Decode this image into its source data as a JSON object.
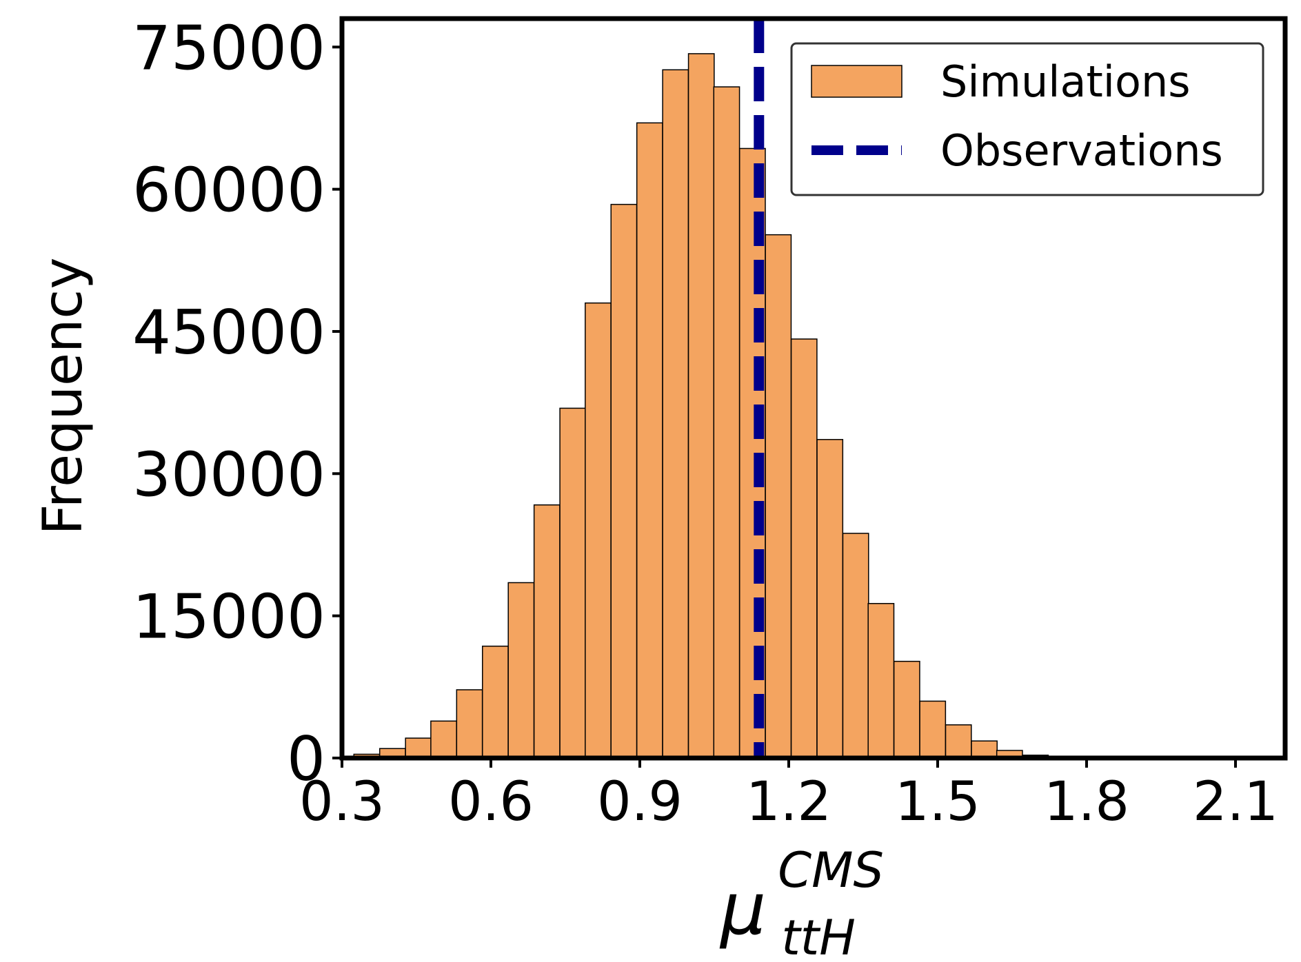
{
  "chart_data": {
    "type": "bar",
    "subtype": "histogram",
    "title": "",
    "xlabel": "μ",
    "xlabel_superscript": "CMS",
    "xlabel_subscript": "ttH",
    "ylabel": "Frequency",
    "xlim": [
      0.3,
      2.2
    ],
    "ylim": [
      0,
      78000
    ],
    "xticks": [
      "0.3",
      "0.6",
      "0.9",
      "1.2",
      "1.5",
      "1.8",
      "2.1"
    ],
    "xtick_values": [
      0.3,
      0.6,
      0.9,
      1.2,
      1.5,
      1.8,
      2.1
    ],
    "yticks": [
      "0",
      "15000",
      "30000",
      "45000",
      "60000",
      "75000"
    ],
    "ytick_values": [
      0,
      15000,
      30000,
      45000,
      60000,
      75000
    ],
    "bin_width": 0.0518,
    "bins": [
      {
        "x0": 0.324,
        "value": 400
      },
      {
        "x0": 0.376,
        "value": 1000
      },
      {
        "x0": 0.428,
        "value": 2100
      },
      {
        "x0": 0.479,
        "value": 3900
      },
      {
        "x0": 0.531,
        "value": 7200
      },
      {
        "x0": 0.583,
        "value": 11800
      },
      {
        "x0": 0.635,
        "value": 18500
      },
      {
        "x0": 0.687,
        "value": 26700
      },
      {
        "x0": 0.739,
        "value": 36900
      },
      {
        "x0": 0.79,
        "value": 48000
      },
      {
        "x0": 0.842,
        "value": 58400
      },
      {
        "x0": 0.894,
        "value": 67000
      },
      {
        "x0": 0.946,
        "value": 72600
      },
      {
        "x0": 0.998,
        "value": 74300
      },
      {
        "x0": 1.049,
        "value": 70800
      },
      {
        "x0": 1.101,
        "value": 64300
      },
      {
        "x0": 1.153,
        "value": 55200
      },
      {
        "x0": 1.205,
        "value": 44200
      },
      {
        "x0": 1.257,
        "value": 33600
      },
      {
        "x0": 1.309,
        "value": 23700
      },
      {
        "x0": 1.36,
        "value": 16300
      },
      {
        "x0": 1.412,
        "value": 10200
      },
      {
        "x0": 1.464,
        "value": 6000
      },
      {
        "x0": 1.516,
        "value": 3500
      },
      {
        "x0": 1.568,
        "value": 1800
      },
      {
        "x0": 1.619,
        "value": 800
      },
      {
        "x0": 1.671,
        "value": 300
      },
      {
        "x0": 1.723,
        "value": 100
      },
      {
        "x0": 1.775,
        "value": 50
      },
      {
        "x0": 1.827,
        "value": 20
      }
    ],
    "observation_x": 1.14,
    "series": [
      {
        "name": "Simulations",
        "kind": "histogram",
        "color": "#F4A460"
      },
      {
        "name": "Observations",
        "kind": "vline-dashed",
        "color": "#00008B"
      }
    ],
    "legend": {
      "position": "top-right",
      "entries": [
        "Simulations",
        "Observations"
      ]
    },
    "colors": {
      "bar_fill": "#F4A460",
      "bar_edge": "#000000",
      "observation_line": "#00008B",
      "axis": "#000000"
    }
  }
}
